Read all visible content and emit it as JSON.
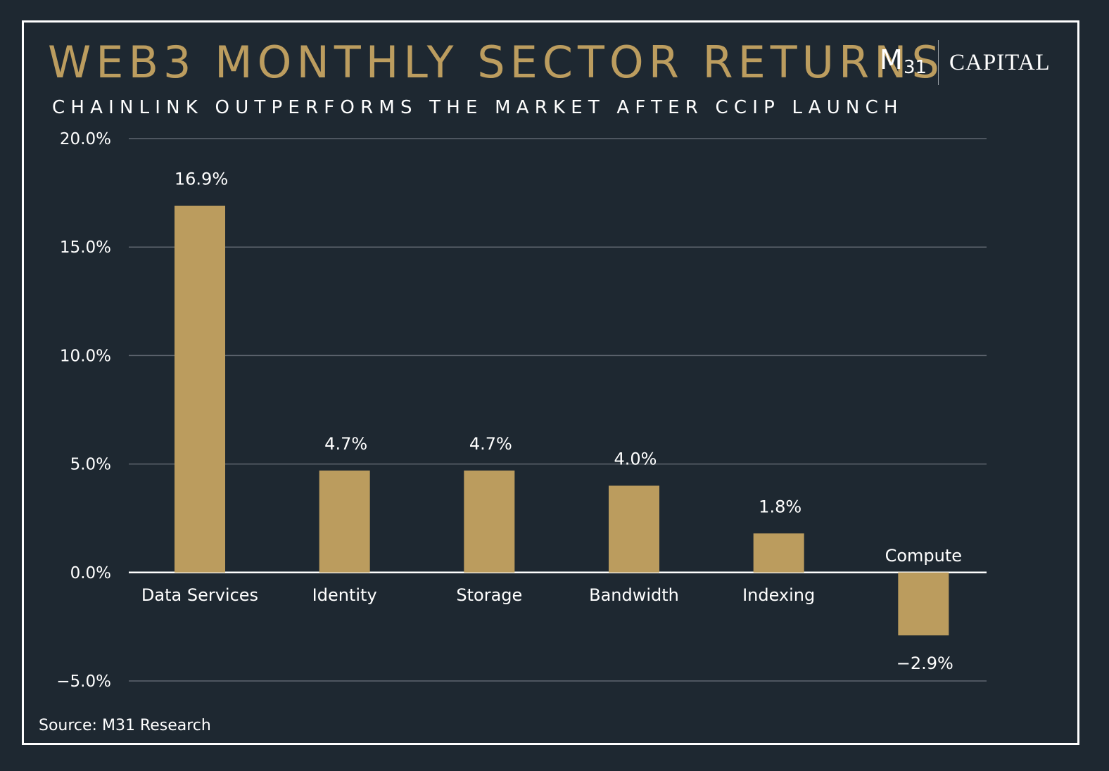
{
  "header": {
    "title": "WEB3 MONTHLY SECTOR RETURNS",
    "subtitle": "CHAINLINK OUTPERFORMS THE MARKET AFTER CCIP LAUNCH"
  },
  "logo": {
    "m": "M",
    "sub": "31",
    "capital": "CAPITAL"
  },
  "footer": {
    "source": "Source: M31 Research"
  },
  "colors": {
    "bar": "#bb9c5e",
    "background": "#1e2831",
    "title": "#bc9d5f",
    "grid": "#5f6670"
  },
  "chart_data": {
    "type": "bar",
    "categories": [
      "Data Services",
      "Identity",
      "Storage",
      "Bandwidth",
      "Indexing",
      "Compute"
    ],
    "values": [
      16.9,
      4.7,
      4.7,
      4.0,
      1.8,
      -2.9
    ],
    "value_labels": [
      "16.9%",
      "4.7%",
      "4.7%",
      "4.0%",
      "1.8%",
      "−2.9%"
    ],
    "yticks": [
      20,
      15,
      10,
      5,
      0,
      -5
    ],
    "ytick_labels": [
      "20.0%",
      "15.0%",
      "10.0%",
      "5.0%",
      "0.0%",
      "−5.0%"
    ],
    "ylim": [
      -5,
      20
    ],
    "grid": true,
    "legend": false
  }
}
